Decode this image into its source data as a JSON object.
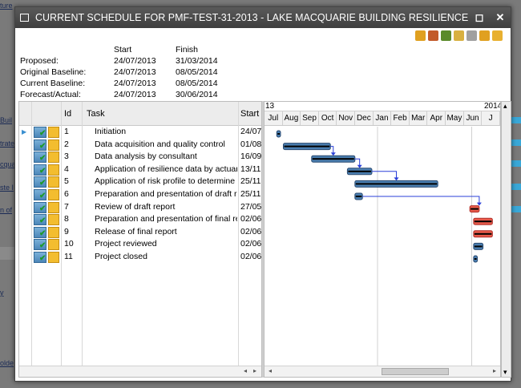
{
  "background": {
    "links": [
      "ture",
      "Buil",
      "trate",
      "cqua",
      "ste I",
      "n of",
      "y",
      "olde"
    ]
  },
  "window": {
    "title": "CURRENT SCHEDULE FOR PMF-TEST-31-2013 - LAKE MACQUARIE BUILDING RESILIENCE AND INSURANCE AF...",
    "maximize_glyph": "◻",
    "close_glyph": "✕"
  },
  "toolbar": {
    "tools": [
      "print-icon",
      "refresh-icon",
      "add-resource-icon",
      "baseline-icon",
      "email-icon",
      "export-icon",
      "user-icon"
    ],
    "tool_colors": [
      "#e0a020",
      "#c25a2a",
      "#5a8a2a",
      "#d8b040",
      "#a0a0a0",
      "#e0a020",
      "#e8b030"
    ]
  },
  "summary": {
    "headers": {
      "start": "Start",
      "finish": "Finish"
    },
    "rows": [
      {
        "label": "Proposed:",
        "start": "24/07/2013",
        "finish": "31/03/2014"
      },
      {
        "label": "Original Baseline:",
        "start": "24/07/2013",
        "finish": "08/05/2014"
      },
      {
        "label": "Current Baseline:",
        "start": "24/07/2013",
        "finish": "08/05/2014"
      },
      {
        "label": "Forecast/Actual:",
        "start": "24/07/2013",
        "finish": "30/06/2014"
      }
    ]
  },
  "grid": {
    "columns": {
      "id": "Id",
      "task": "Task",
      "start": "Start"
    },
    "rows": [
      {
        "id": "1",
        "task": "Initiation",
        "start": "24/07"
      },
      {
        "id": "2",
        "task": "Data acquisition and quality control",
        "start": "01/08"
      },
      {
        "id": "3",
        "task": "Data analysis by consultant",
        "start": "16/09"
      },
      {
        "id": "4",
        "task": "Application of resilience data by actuary t",
        "start": "13/11"
      },
      {
        "id": "5",
        "task": "Application of risk profile to determine ins",
        "start": "25/11"
      },
      {
        "id": "6",
        "task": "Preparation and presentation of draft repo",
        "start": "25/11"
      },
      {
        "id": "7",
        "task": "Review of draft report",
        "start": "27/05"
      },
      {
        "id": "8",
        "task": "Preparation and presentation of final repo",
        "start": "02/06"
      },
      {
        "id": "9",
        "task": "Release of final report",
        "start": "02/06"
      },
      {
        "id": "10",
        "task": "Project reviewed",
        "start": "02/06"
      },
      {
        "id": "11",
        "task": "Project closed",
        "start": "02/06"
      }
    ],
    "scroll_left": "◂",
    "scroll_right": "▸"
  },
  "gantt": {
    "years": [
      "13",
      "2014"
    ],
    "months": [
      "Jul",
      "Aug",
      "Sep",
      "Oct",
      "Nov",
      "Dec",
      "Jan",
      "Feb",
      "Mar",
      "Apr",
      "May",
      "Jun",
      "J"
    ],
    "bar_color": "#4a7eb0",
    "late_color": "#e85a4a",
    "bars": [
      {
        "start_month": 0.65,
        "end_month": 0.85,
        "late": false
      },
      {
        "start_month": 1.0,
        "end_month": 3.5,
        "late": false
      },
      {
        "start_month": 2.5,
        "end_month": 4.8,
        "late": false
      },
      {
        "start_month": 4.4,
        "end_month": 5.7,
        "late": false
      },
      {
        "start_month": 4.8,
        "end_month": 9.2,
        "late": false
      },
      {
        "start_month": 4.8,
        "end_month": 5.2,
        "late": false
      },
      {
        "start_month": 10.9,
        "end_month": 11.4,
        "late": true
      },
      {
        "start_month": 11.1,
        "end_month": 12.1,
        "late": true
      },
      {
        "start_month": 11.1,
        "end_month": 12.1,
        "late": true
      },
      {
        "start_month": 11.1,
        "end_month": 11.6,
        "late": false
      },
      {
        "start_month": 11.1,
        "end_month": 11.3,
        "late": false
      }
    ],
    "scroll_left": "◂",
    "scroll_right": "▸"
  },
  "vscroll": {
    "up": "▴",
    "down": "▾"
  }
}
